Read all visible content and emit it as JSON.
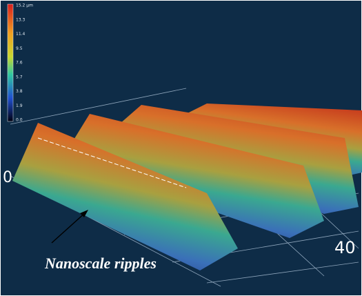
{
  "colorbar": {
    "labels": [
      "15.2 µm",
      "13.3",
      "11.4",
      "9.5",
      "7.6",
      "5.7",
      "3.8",
      "1.9",
      "0.0"
    ]
  },
  "axis": {
    "left_label": "0",
    "right_label": "40"
  },
  "annotation": "Nanoscale ripples"
}
